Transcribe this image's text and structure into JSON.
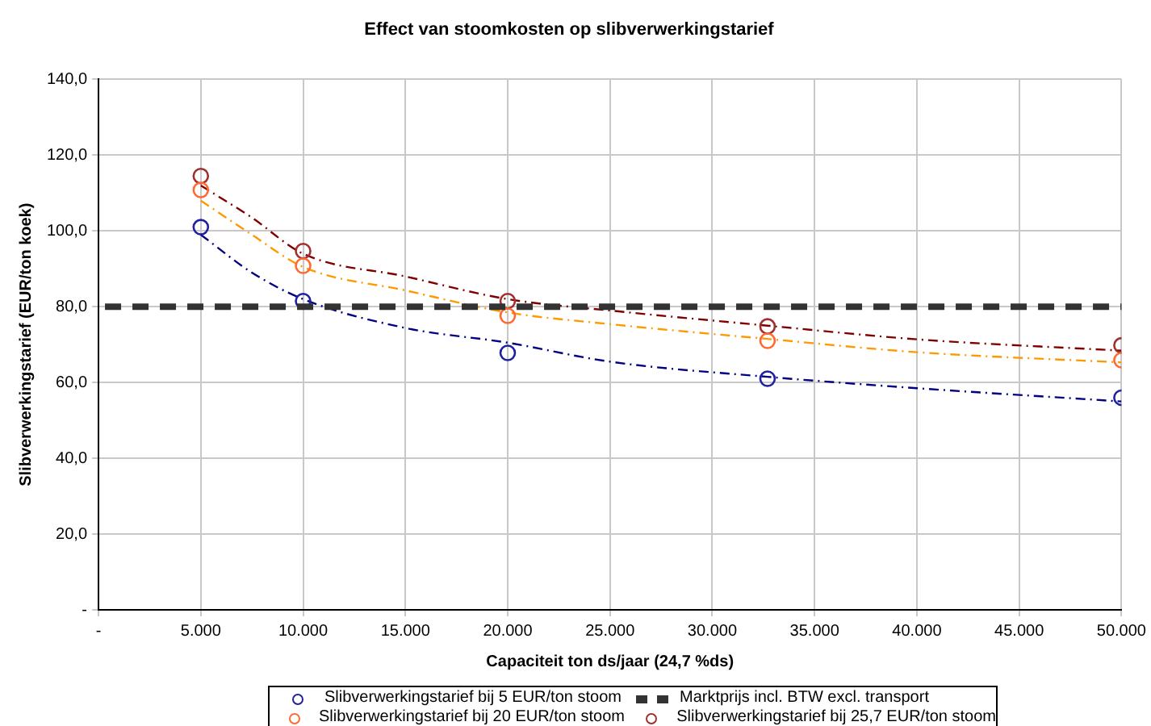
{
  "chart_data": {
    "type": "scatter",
    "title": "Effect van stoomkosten op slibverwerkingstarief",
    "xlabel": "Capaciteit ton ds/jaar (24,7 %ds)",
    "ylabel": "Slibverwerkingstarief (EUR/ton koek)",
    "xlim": [
      0,
      50000
    ],
    "ylim": [
      0,
      140
    ],
    "xticks": [
      {
        "value": 0,
        "label": "-"
      },
      {
        "value": 5000,
        "label": "5.000"
      },
      {
        "value": 10000,
        "label": "10.000"
      },
      {
        "value": 15000,
        "label": "15.000"
      },
      {
        "value": 20000,
        "label": "20.000"
      },
      {
        "value": 25000,
        "label": "25.000"
      },
      {
        "value": 30000,
        "label": "30.000"
      },
      {
        "value": 35000,
        "label": "35.000"
      },
      {
        "value": 40000,
        "label": "40.000"
      },
      {
        "value": 45000,
        "label": "45.000"
      },
      {
        "value": 50000,
        "label": "50.000"
      }
    ],
    "yticks": [
      {
        "value": 0,
        "label": "-"
      },
      {
        "value": 20,
        "label": "20,0"
      },
      {
        "value": 40,
        "label": "40,0"
      },
      {
        "value": 60,
        "label": "60,0"
      },
      {
        "value": 80,
        "label": "80,0"
      },
      {
        "value": 100,
        "label": "100,0"
      },
      {
        "value": 120,
        "label": "120,0"
      },
      {
        "value": 140,
        "label": "140,0"
      }
    ],
    "grid": true,
    "legend": "bottom",
    "marker": "circle",
    "series": [
      {
        "name": "Slibverwerkingstarief bij 5 EUR/ton stoom",
        "color": "#2020a0",
        "x": [
          5000,
          10000,
          20000,
          32700,
          50000
        ],
        "values": [
          101,
          81.5,
          67.8,
          61,
          56
        ]
      },
      {
        "name": "Slibverwerkingstarief bij 20 EUR/ton stoom",
        "color": "#ff6a33",
        "x": [
          5000,
          10000,
          20000,
          32700,
          50000
        ],
        "values": [
          110.8,
          90.8,
          77.6,
          71,
          65.9
        ]
      },
      {
        "name": "Slibverwerkingstarief bij 25,7 EUR/ton stoom",
        "color": "#a03030",
        "x": [
          5000,
          10000,
          20000,
          32700,
          50000
        ],
        "values": [
          114.5,
          94.7,
          81.5,
          74.8,
          69.8
        ]
      },
      {
        "type": "line",
        "color": "#000080",
        "marker": "none",
        "line_style": "dashed",
        "x": [
          5000,
          7500,
          10000,
          15000,
          20000,
          25000,
          32700,
          40000,
          50000
        ],
        "values": [
          99,
          89,
          82,
          74.4,
          70.5,
          65.5,
          61.5,
          58.5,
          55
        ]
      },
      {
        "type": "line",
        "color": "#ff9900",
        "marker": "none",
        "line_style": "dashed",
        "x": [
          5000,
          7500,
          10000,
          15000,
          20000,
          25000,
          32700,
          40000,
          50000
        ],
        "values": [
          108,
          99,
          90.5,
          84.3,
          78.5,
          75.4,
          71.5,
          68,
          65.3
        ]
      },
      {
        "type": "line",
        "color": "#800000",
        "marker": "none",
        "line_style": "dashed",
        "x": [
          5000,
          7500,
          10000,
          15000,
          20000,
          25000,
          32700,
          40000,
          50000
        ],
        "values": [
          112,
          103.5,
          94,
          88,
          82,
          79,
          75,
          71.4,
          68.4
        ]
      }
    ],
    "ref_lines": [
      {
        "axis": "y",
        "value": 80,
        "label": "Marktprijs incl. BTW excl. transport",
        "color": "#333333",
        "line_style": "dashed"
      }
    ]
  }
}
